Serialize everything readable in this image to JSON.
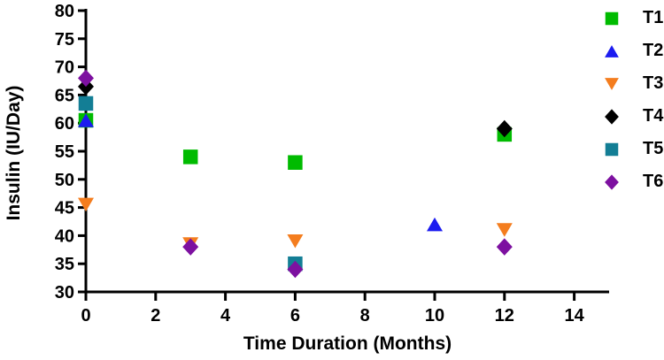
{
  "chart_data": {
    "type": "scatter",
    "title": "",
    "xlabel": "Time Duration (Months)",
    "ylabel": "Insulin (IU/Day)",
    "xlim": [
      0,
      15
    ],
    "ylim": [
      30,
      80
    ],
    "xticks": [
      0,
      2,
      4,
      6,
      8,
      10,
      12,
      14
    ],
    "yticks": [
      30,
      35,
      40,
      45,
      50,
      55,
      60,
      65,
      70,
      75,
      80
    ],
    "grid": false,
    "legend_position": "right",
    "axis_color": "#000000",
    "series": [
      {
        "name": "T1",
        "marker": "square",
        "color": "#00BB00",
        "points": [
          [
            0,
            60.5
          ],
          [
            3,
            54
          ],
          [
            6,
            53
          ],
          [
            12,
            58
          ]
        ]
      },
      {
        "name": "T2",
        "marker": "triangle-up",
        "color": "#1C1CF0",
        "points": [
          [
            0,
            60.5
          ],
          [
            10,
            42
          ]
        ]
      },
      {
        "name": "T3",
        "marker": "triangle-down",
        "color": "#F47D1E",
        "points": [
          [
            0,
            45.5
          ],
          [
            3,
            38.5
          ],
          [
            6,
            39
          ],
          [
            12,
            41
          ]
        ]
      },
      {
        "name": "T4",
        "marker": "diamond",
        "color": "#000000",
        "points": [
          [
            0,
            66.5
          ],
          [
            12,
            59
          ]
        ]
      },
      {
        "name": "T5",
        "marker": "square",
        "color": "#137E95",
        "points": [
          [
            0,
            63.5
          ],
          [
            6,
            35
          ]
        ]
      },
      {
        "name": "T6",
        "marker": "diamond",
        "color": "#7D10A0",
        "points": [
          [
            0,
            68
          ],
          [
            3,
            38
          ],
          [
            6,
            34
          ],
          [
            12,
            38
          ]
        ]
      }
    ]
  }
}
